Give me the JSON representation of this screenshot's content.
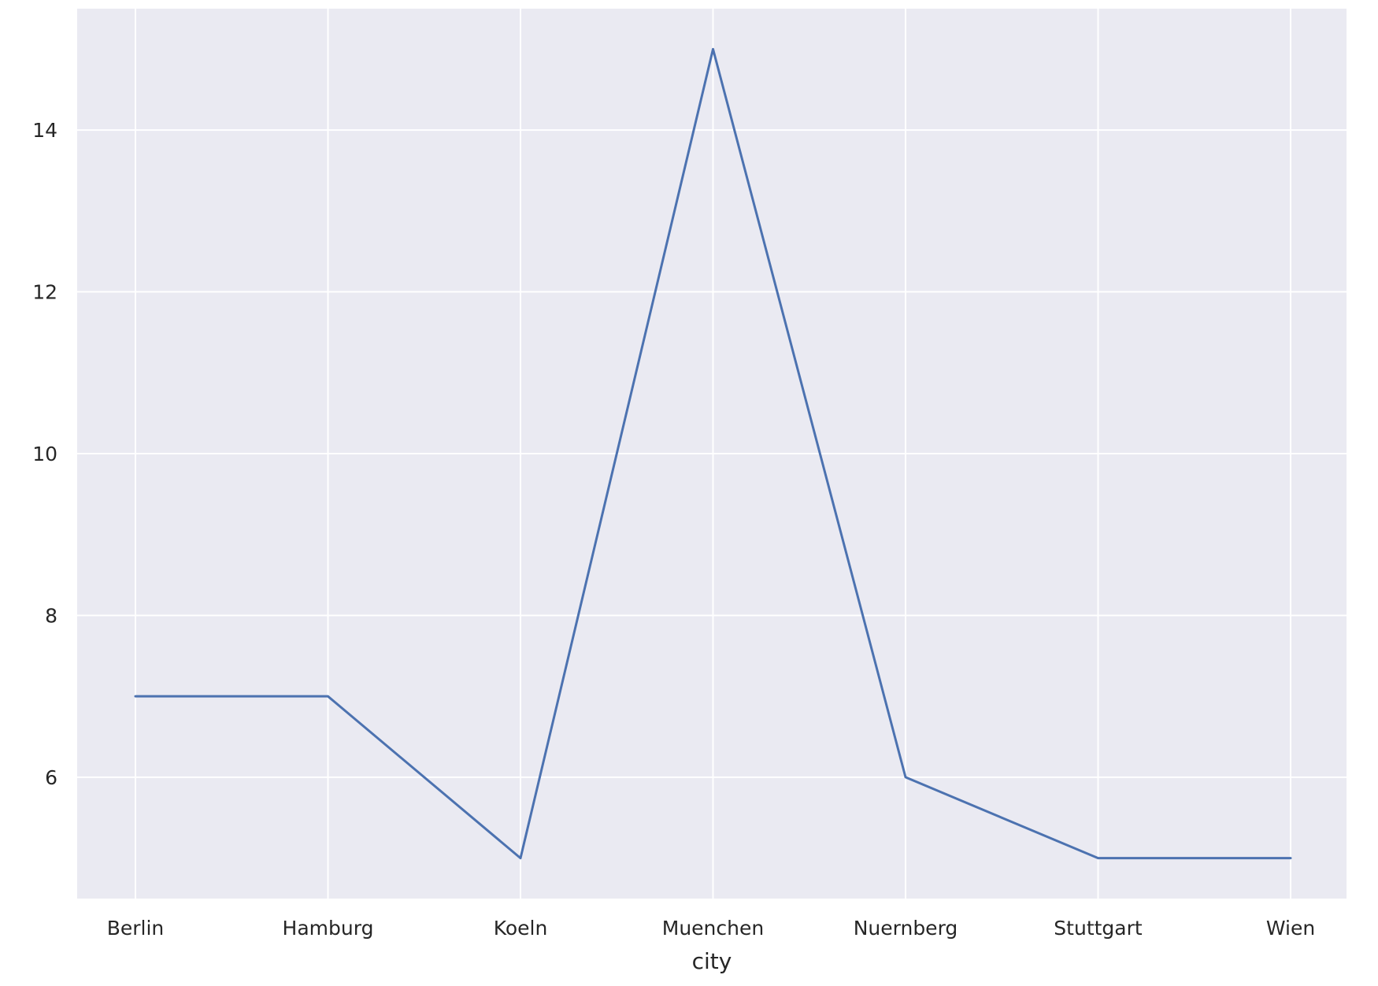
{
  "chart_data": {
    "type": "line",
    "title": "",
    "xlabel": "city",
    "ylabel": "",
    "categories": [
      "Berlin",
      "Hamburg",
      "Koeln",
      "Muenchen",
      "Nuernberg",
      "Stuttgart",
      "Wien"
    ],
    "series": [
      {
        "values": [
          7,
          7,
          5,
          15,
          6,
          5,
          5
        ]
      }
    ],
    "yticks": [
      6,
      8,
      10,
      12,
      14
    ],
    "ylim": [
      4.5,
      15.5
    ],
    "grid": true,
    "legend": "none",
    "colors": {
      "plot_background": "#EAEAF2",
      "grid": "#FFFFFF",
      "line": "#4C72B0",
      "text": "#262626"
    }
  }
}
